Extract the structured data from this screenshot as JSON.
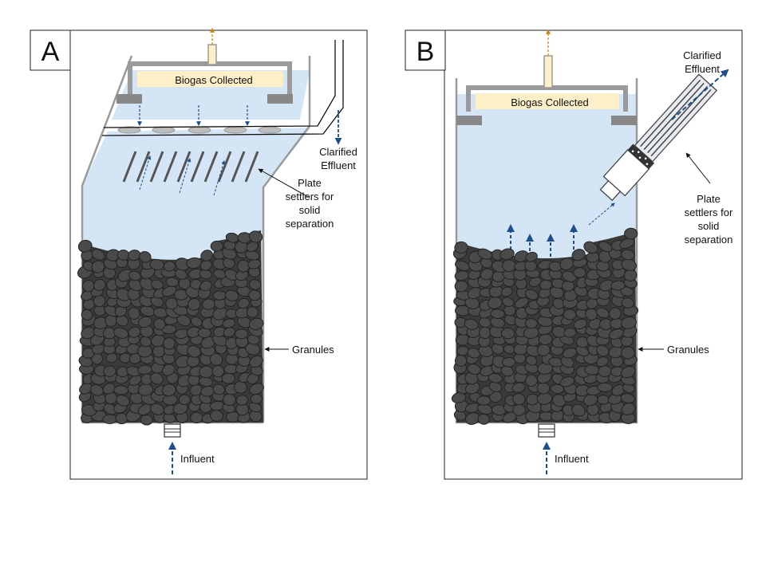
{
  "panels": [
    {
      "letter": "A",
      "biogas_label": "Biogas Collected",
      "effluent_label": [
        "Clarified",
        "Effluent"
      ],
      "settler_label": [
        "Plate",
        "settlers for",
        "solid",
        "separation"
      ],
      "granules_label": "Granules",
      "influent_label": "Influent"
    },
    {
      "letter": "B",
      "biogas_label": "Biogas Collected",
      "effluent_label": [
        "Clarified",
        "Effluent"
      ],
      "settler_label": [
        "Plate",
        "settlers for",
        "solid",
        "separation"
      ],
      "granules_label": "Granules",
      "influent_label": "Influent"
    }
  ],
  "colors": {
    "water": "#d4e6f5",
    "granule": "#4a4a4a",
    "granule_stroke": "#222222",
    "arrow_blue": "#1f4e8c",
    "biogas_fill": "#fdf0c8",
    "biogas_arrow": "#c8860a",
    "wall": "#9a9a9a",
    "baffle": "#888888"
  }
}
